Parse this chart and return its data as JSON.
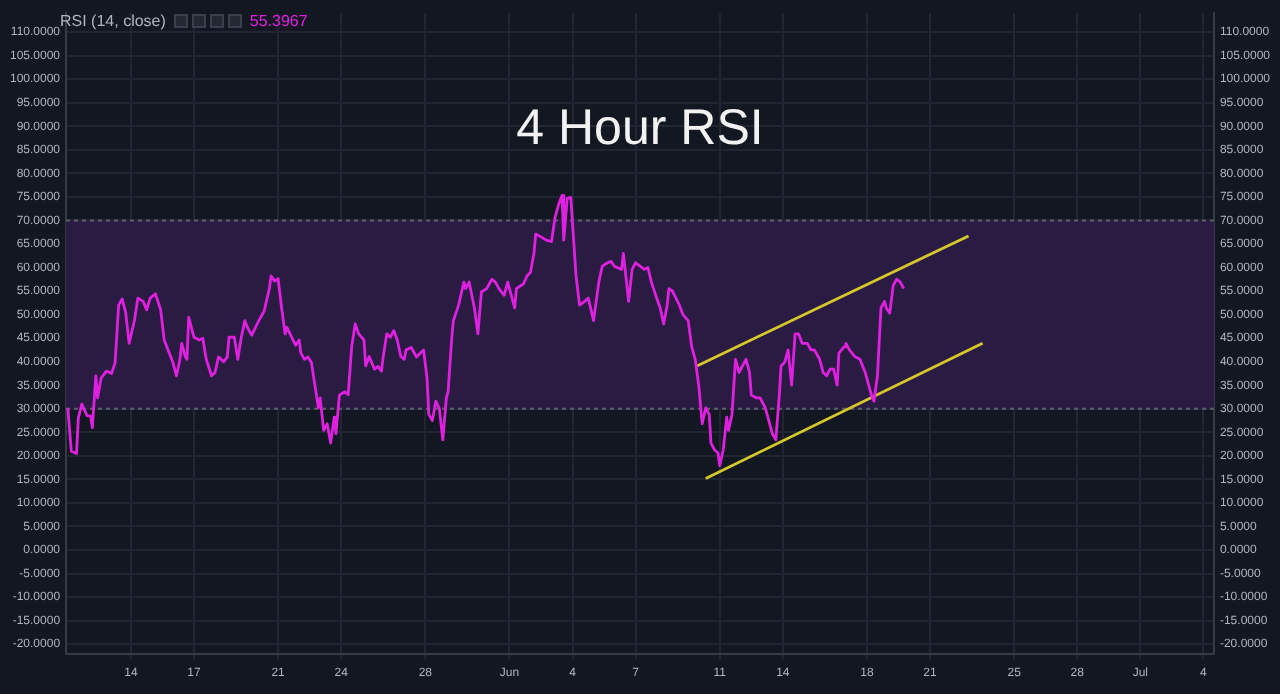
{
  "chart_data": {
    "type": "line",
    "title": "4 Hour RSI",
    "annotations": [
      "RSI (14, close)",
      "55.3967"
    ],
    "xlim": [
      "--05-10T22:00",
      "--07-04T12:00"
    ],
    "xticks": [
      {
        "value": "--05-14",
        "label": "14"
      },
      {
        "value": "--05-17",
        "label": "17"
      },
      {
        "value": "--05-21",
        "label": "21"
      },
      {
        "value": "--05-24",
        "label": "24"
      },
      {
        "value": "--05-28",
        "label": "28"
      },
      {
        "value": "--06-01",
        "label": "Jun"
      },
      {
        "value": "--06-04",
        "label": "4"
      },
      {
        "value": "--06-07",
        "label": "7"
      },
      {
        "value": "--06-11",
        "label": "11"
      },
      {
        "value": "--06-14",
        "label": "14"
      },
      {
        "value": "--06-18",
        "label": "18"
      },
      {
        "value": "--06-21",
        "label": "21"
      },
      {
        "value": "--06-25",
        "label": "25"
      },
      {
        "value": "--06-28",
        "label": "28"
      },
      {
        "value": "--07-01",
        "label": "Jul"
      },
      {
        "value": "--07-04",
        "label": "4"
      }
    ],
    "ylim": [
      -22,
      114
    ],
    "yticks": [
      {
        "value": -20,
        "label": "-20.0000"
      },
      {
        "value": -15,
        "label": "-15.0000"
      },
      {
        "value": -10,
        "label": "-10.0000"
      },
      {
        "value": -5,
        "label": "-5.0000"
      },
      {
        "value": 0,
        "label": "0.0000"
      },
      {
        "value": 5,
        "label": "5.0000"
      },
      {
        "value": 10,
        "label": "10.0000"
      },
      {
        "value": 15,
        "label": "15.0000"
      },
      {
        "value": 20,
        "label": "20.0000"
      },
      {
        "value": 25,
        "label": "25.0000"
      },
      {
        "value": 30,
        "label": "30.0000"
      },
      {
        "value": 35,
        "label": "35.0000"
      },
      {
        "value": 40,
        "label": "40.0000"
      },
      {
        "value": 45,
        "label": "45.0000"
      },
      {
        "value": 50,
        "label": "50.0000"
      },
      {
        "value": 55,
        "label": "55.0000"
      },
      {
        "value": 60,
        "label": "60.0000"
      },
      {
        "value": 65,
        "label": "65.0000"
      },
      {
        "value": 70,
        "label": "70.0000"
      },
      {
        "value": 75,
        "label": "75.0000"
      },
      {
        "value": 80,
        "label": "80.0000"
      },
      {
        "value": 85,
        "label": "85.0000"
      },
      {
        "value": 90,
        "label": "90.0000"
      },
      {
        "value": 95,
        "label": "95.0000"
      },
      {
        "value": 100,
        "label": "100.0000"
      },
      {
        "value": 105,
        "label": "105.0000"
      },
      {
        "value": 110,
        "label": "110.0000"
      }
    ],
    "y2lim": [
      -22,
      114
    ],
    "y2ticks": [
      {
        "value": -20,
        "label": "-20.0000"
      },
      {
        "value": -15,
        "label": "-15.0000"
      },
      {
        "value": -10,
        "label": "-10.0000"
      },
      {
        "value": -5,
        "label": "-5.0000"
      },
      {
        "value": 0,
        "label": "0.0000"
      },
      {
        "value": 5,
        "label": "5.0000"
      },
      {
        "value": 10,
        "label": "10.0000"
      },
      {
        "value": 15,
        "label": "15.0000"
      },
      {
        "value": 20,
        "label": "20.0000"
      },
      {
        "value": 25,
        "label": "25.0000"
      },
      {
        "value": 30,
        "label": "30.0000"
      },
      {
        "value": 35,
        "label": "35.0000"
      },
      {
        "value": 40,
        "label": "40.0000"
      },
      {
        "value": 45,
        "label": "45.0000"
      },
      {
        "value": 50,
        "label": "50.0000"
      },
      {
        "value": 55,
        "label": "55.0000"
      },
      {
        "value": 60,
        "label": "60.0000"
      },
      {
        "value": 65,
        "label": "65.0000"
      },
      {
        "value": 70,
        "label": "70.0000"
      },
      {
        "value": 75,
        "label": "75.0000"
      },
      {
        "value": 80,
        "label": "80.0000"
      },
      {
        "value": 85,
        "label": "85.0000"
      },
      {
        "value": 90,
        "label": "90.0000"
      },
      {
        "value": 95,
        "label": "95.0000"
      },
      {
        "value": 100,
        "label": "100.0000"
      },
      {
        "value": 105,
        "label": "105.0000"
      },
      {
        "value": 110,
        "label": "110.0000"
      }
    ],
    "grid": true,
    "legend": false,
    "marker": "none",
    "line_style": "solid",
    "bands": [
      {
        "axis": "y",
        "from": 30,
        "to": 70,
        "color": "#2a1b42"
      }
    ],
    "series": [
      {
        "color": "#e020e0",
        "x": [
          "--05-11T00:00",
          "--05-11T04:00",
          "--05-11T10:00",
          "--05-11T12:00",
          "--05-11T16:00",
          "--05-11T22:00",
          "--05-12T02:00",
          "--05-12T04:00",
          "--05-12T08:00",
          "--05-12T10:00",
          "--05-12T14:00",
          "--05-12T20:00",
          "--05-13T02:00",
          "--05-13T06:00",
          "--05-13T10:00",
          "--05-13T14:00",
          "--05-13T18:00",
          "--05-13T22:00",
          "--05-14T04:00",
          "--05-14T08:00",
          "--05-14T14:00",
          "--05-14T18:00",
          "--05-14T22:00",
          "--05-15T04:00",
          "--05-15T10:00",
          "--05-15T14:00",
          "--05-16T00:00",
          "--05-16T04:00",
          "--05-16T08:00",
          "--05-16T10:00",
          "--05-16T14:00",
          "--05-16T16:00",
          "--05-16T18:00",
          "--05-17T00:00",
          "--05-17T06:00",
          "--05-17T10:00",
          "--05-17T14:00",
          "--05-17T20:00",
          "--05-18T00:00",
          "--05-18T04:00",
          "--05-18T10:00",
          "--05-18T14:00",
          "--05-18T16:00",
          "--05-18T22:00",
          "--05-19T02:00",
          "--05-19T06:00",
          "--05-19T10:00",
          "--05-19T14:00",
          "--05-19T18:00",
          "--05-19T22:00",
          "--05-20T02:00",
          "--05-20T08:00",
          "--05-20T14:00",
          "--05-20T16:00",
          "--05-20T20:00",
          "--05-21T00:00",
          "--05-21T04:00",
          "--05-21T08:00",
          "--05-21T10:00",
          "--05-21T16:00",
          "--05-21T20:00",
          "--05-22T00:00",
          "--05-22T02:00",
          "--05-22T06:00",
          "--05-22T10:00",
          "--05-22T14:00",
          "--05-22T18:00",
          "--05-22T22:00",
          "--05-23T00:00",
          "--05-23T04:00",
          "--05-23T08:00",
          "--05-23T12:00",
          "--05-23T16:00",
          "--05-23T18:00",
          "--05-23T22:00",
          "--05-24T04:00",
          "--05-24T08:00",
          "--05-24T12:00",
          "--05-24T16:00",
          "--05-24T20:00",
          "--05-25T02:00",
          "--05-25T04:00",
          "--05-25T08:00",
          "--05-25T14:00",
          "--05-25T18:00",
          "--05-25T22:00",
          "--05-26T00:00",
          "--05-26T04:00",
          "--05-26T08:00",
          "--05-26T12:00",
          "--05-26T16:00",
          "--05-26T20:00",
          "--05-27T00:00",
          "--05-27T02:00",
          "--05-27T08:00",
          "--05-27T14:00",
          "--05-27T22:00",
          "--05-28T02:00",
          "--05-28T04:00",
          "--05-28T08:00",
          "--05-28T12:00",
          "--05-28T16:00",
          "--05-28T20:00",
          "--05-29T00:00",
          "--05-29T02:00",
          "--05-29T06:00",
          "--05-29T08:00",
          "--05-29T14:00",
          "--05-29T20:00",
          "--05-29T22:00",
          "--05-30T02:00",
          "--05-30T08:00",
          "--05-30T10:00",
          "--05-30T12:00",
          "--05-30T16:00",
          "--05-30T22:00",
          "--05-31T04:00",
          "--05-31T08:00",
          "--05-31T12:00",
          "--05-31T18:00",
          "--05-31T22:00",
          "--06-01T06:00",
          "--06-01T08:00",
          "--06-01T16:00",
          "--06-01T20:00",
          "--06-02T00:00",
          "--06-02T04:00",
          "--06-02T06:00",
          "--06-02T12:00",
          "--06-02T18:00",
          "--06-03T00:00",
          "--06-03T04:00",
          "--06-03T08:00",
          "--06-03T12:00",
          "--06-03T14:00",
          "--06-03T18:00",
          "--06-03T22:00",
          "--06-04T04:00",
          "--06-04T08:00",
          "--06-04T14:00",
          "--06-04T18:00",
          "--06-05T00:00",
          "--06-05T06:00",
          "--06-05T10:00",
          "--06-05T16:00",
          "--06-05T20:00",
          "--06-06T00:00",
          "--06-06T08:00",
          "--06-06T10:00",
          "--06-06T16:00",
          "--06-06T20:00",
          "--06-07T00:00",
          "--06-07T10:00",
          "--06-07T14:00",
          "--06-07T18:00",
          "--06-08T00:00",
          "--06-08T04:00",
          "--06-08T08:00",
          "--06-08T12:00",
          "--06-08T14:00",
          "--06-08T18:00",
          "--06-08T22:00",
          "--06-09T02:00",
          "--06-09T06:00",
          "--06-09T12:00",
          "--06-09T16:00",
          "--06-09T20:00",
          "--06-10T00:00",
          "--06-10T04:00",
          "--06-10T08:00",
          "--06-10T12:00",
          "--06-10T14:00",
          "--06-10T18:00",
          "--06-10T22:00",
          "--06-11T00:00",
          "--06-11T04:00",
          "--06-11T08:00",
          "--06-11T10:00",
          "--06-11T14:00",
          "--06-11T18:00",
          "--06-11T22:00",
          "--06-12T02:00",
          "--06-12T06:00",
          "--06-12T10:00",
          "--06-12T12:00",
          "--06-12T18:00",
          "--06-12T22:00",
          "--06-13T04:00",
          "--06-13T08:00",
          "--06-13T12:00",
          "--06-13T16:00",
          "--06-13T20:00",
          "--06-13T22:00",
          "--06-14T02:00",
          "--06-14T06:00",
          "--06-14T10:00",
          "--06-14T14:00",
          "--06-14T18:00",
          "--06-14T22:00",
          "--06-15T04:00",
          "--06-15T08:00",
          "--06-15T12:00",
          "--06-15T18:00",
          "--06-15T22:00",
          "--06-16T02:00",
          "--06-16T06:00",
          "--06-16T10:00",
          "--06-16T14:00",
          "--06-16T16:00",
          "--06-16T22:00",
          "--06-17T00:00",
          "--06-17T04:00",
          "--06-17T10:00",
          "--06-17T16:00",
          "--06-17T22:00",
          "--06-18T02:00",
          "--06-18T06:00",
          "--06-18T08:00",
          "--06-18T12:00",
          "--06-18T16:00",
          "--06-18T20:00",
          "--06-18T22:00",
          "--06-19T02:00",
          "--06-19T06:00",
          "--06-19T10:00",
          "--06-19T14:00",
          "--06-19T18:00"
        ],
        "values": [
          30.2,
          21,
          20.5,
          28,
          31,
          28.5,
          28.5,
          26,
          37,
          32.3,
          36.5,
          38,
          37.5,
          39.8,
          52,
          53.3,
          50.5,
          43.9,
          48.7,
          53.5,
          52.8,
          51,
          53.5,
          54.4,
          51,
          44.6,
          39.8,
          37,
          40.5,
          43.9,
          41.1,
          40.5,
          49.4,
          45.2,
          44.6,
          45,
          40.5,
          37,
          37.7,
          41,
          40,
          41,
          45.2,
          45.2,
          40.5,
          45.2,
          48.7,
          46.9,
          45.6,
          47.2,
          48.7,
          50.7,
          55.5,
          58.2,
          57.1,
          57.6,
          51.4,
          45.9,
          47.3,
          45,
          43.5,
          44.6,
          41.8,
          40.5,
          41,
          39.8,
          35,
          30.2,
          32.3,
          25.4,
          26.8,
          22.7,
          28.2,
          24.7,
          32.9,
          33.6,
          33,
          43.2,
          48,
          45.9,
          44.6,
          39.1,
          41.1,
          38.4,
          39,
          38,
          41.1,
          45.9,
          45.2,
          46.6,
          44.6,
          41.1,
          40.5,
          42.5,
          43,
          41,
          42.5,
          36.4,
          28.8,
          27.5,
          31.6,
          30,
          23.4,
          32.3,
          33.6,
          44.6,
          48.7,
          52,
          56.9,
          55.5,
          56.9,
          51.4,
          48.7,
          45.9,
          54.8,
          55.5,
          57.5,
          56.9,
          55.5,
          54.1,
          56.9,
          51.4,
          55.5,
          56.5,
          58.2,
          59,
          63,
          67.1,
          66.5,
          65.8,
          65.5,
          70.6,
          73.3,
          75.3,
          65.8,
          74.7,
          74.9,
          58.2,
          52,
          52.8,
          53.5,
          48.7,
          56.9,
          60.3,
          61,
          61.3,
          60.2,
          59.6,
          63,
          52.8,
          59.6,
          61,
          59.6,
          60,
          56.9,
          53.5,
          51.4,
          48,
          52,
          55.5,
          55,
          53.5,
          52,
          50,
          48.7,
          43.2,
          40.5,
          35,
          26.8,
          30.2,
          28.8,
          22.7,
          21.3,
          20.6,
          17.9,
          21.3,
          28.2,
          25.4,
          28.8,
          40.5,
          37.7,
          39.1,
          40.5,
          37.7,
          32.9,
          32.3,
          32.3,
          30.2,
          27.5,
          24.7,
          23.4,
          32.9,
          39.1,
          39.8,
          42.5,
          35,
          45.9,
          45.9,
          43.9,
          43.9,
          42.5,
          42.5,
          40.5,
          37.7,
          37,
          38.4,
          38.4,
          35,
          41.8,
          43.2,
          43.9,
          42.5,
          41.1,
          40.5,
          37.7,
          35,
          32.3,
          31.6,
          37,
          51.4,
          52.8,
          51.4,
          50.3,
          56.2,
          57.5,
          56.9,
          55.5
        ]
      },
      {
        "type": "line",
        "color": "#d6c82a",
        "x": [
          "--06-09T22:00",
          "--06-22T20:00"
        ],
        "values": [
          39.1,
          66.7
        ]
      },
      {
        "type": "line",
        "color": "#d6c82a",
        "x": [
          "--06-10T08:00",
          "--06-23T12:00"
        ],
        "values": [
          15.2,
          43.9
        ]
      }
    ]
  }
}
